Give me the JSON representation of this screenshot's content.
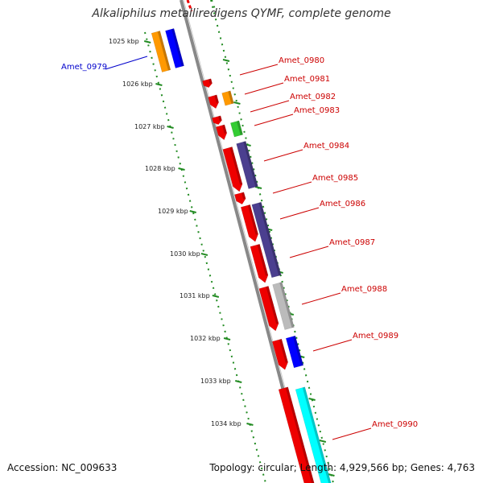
{
  "title": "Alkaliphilus metalliredigens QYMF, complete genome",
  "footer": {
    "accession": "Accession: NC_009633",
    "summary": "Topology: circular; Length: 4,929,566 bp; Genes: 4,763"
  },
  "colors": {
    "forward_gene": "#ff0000",
    "red": "#ee0000",
    "orange": "#ff9900",
    "blue": "#0000ff",
    "green": "#33cc33",
    "purple": "#4b3f8f",
    "gray": "#bbbbbb",
    "cyan": "#00ffff",
    "grid_dots": "#228b22",
    "backbone": "#888888",
    "label_red": "#cc0000",
    "label_blue": "#0000cc"
  },
  "scale_labels": [
    "1025 kbp",
    "1026 kbp",
    "1027 kbp",
    "1028 kbp",
    "1029 kbp",
    "1030 kbp",
    "1031 kbp",
    "1032 kbp",
    "1033 kbp",
    "1034 kbp"
  ],
  "gene_labels": [
    {
      "name": "Amet_0979",
      "color": "blue"
    },
    {
      "name": "Amet_0980",
      "color": "red"
    },
    {
      "name": "Amet_0981",
      "color": "red"
    },
    {
      "name": "Amet_0982",
      "color": "red"
    },
    {
      "name": "Amet_0983",
      "color": "red"
    },
    {
      "name": "Amet_0984",
      "color": "red"
    },
    {
      "name": "Amet_0985",
      "color": "red"
    },
    {
      "name": "Amet_0986",
      "color": "red"
    },
    {
      "name": "Amet_0987",
      "color": "red"
    },
    {
      "name": "Amet_0988",
      "color": "red"
    },
    {
      "name": "Amet_0989",
      "color": "red"
    },
    {
      "name": "Amet_0990",
      "color": "red"
    }
  ]
}
